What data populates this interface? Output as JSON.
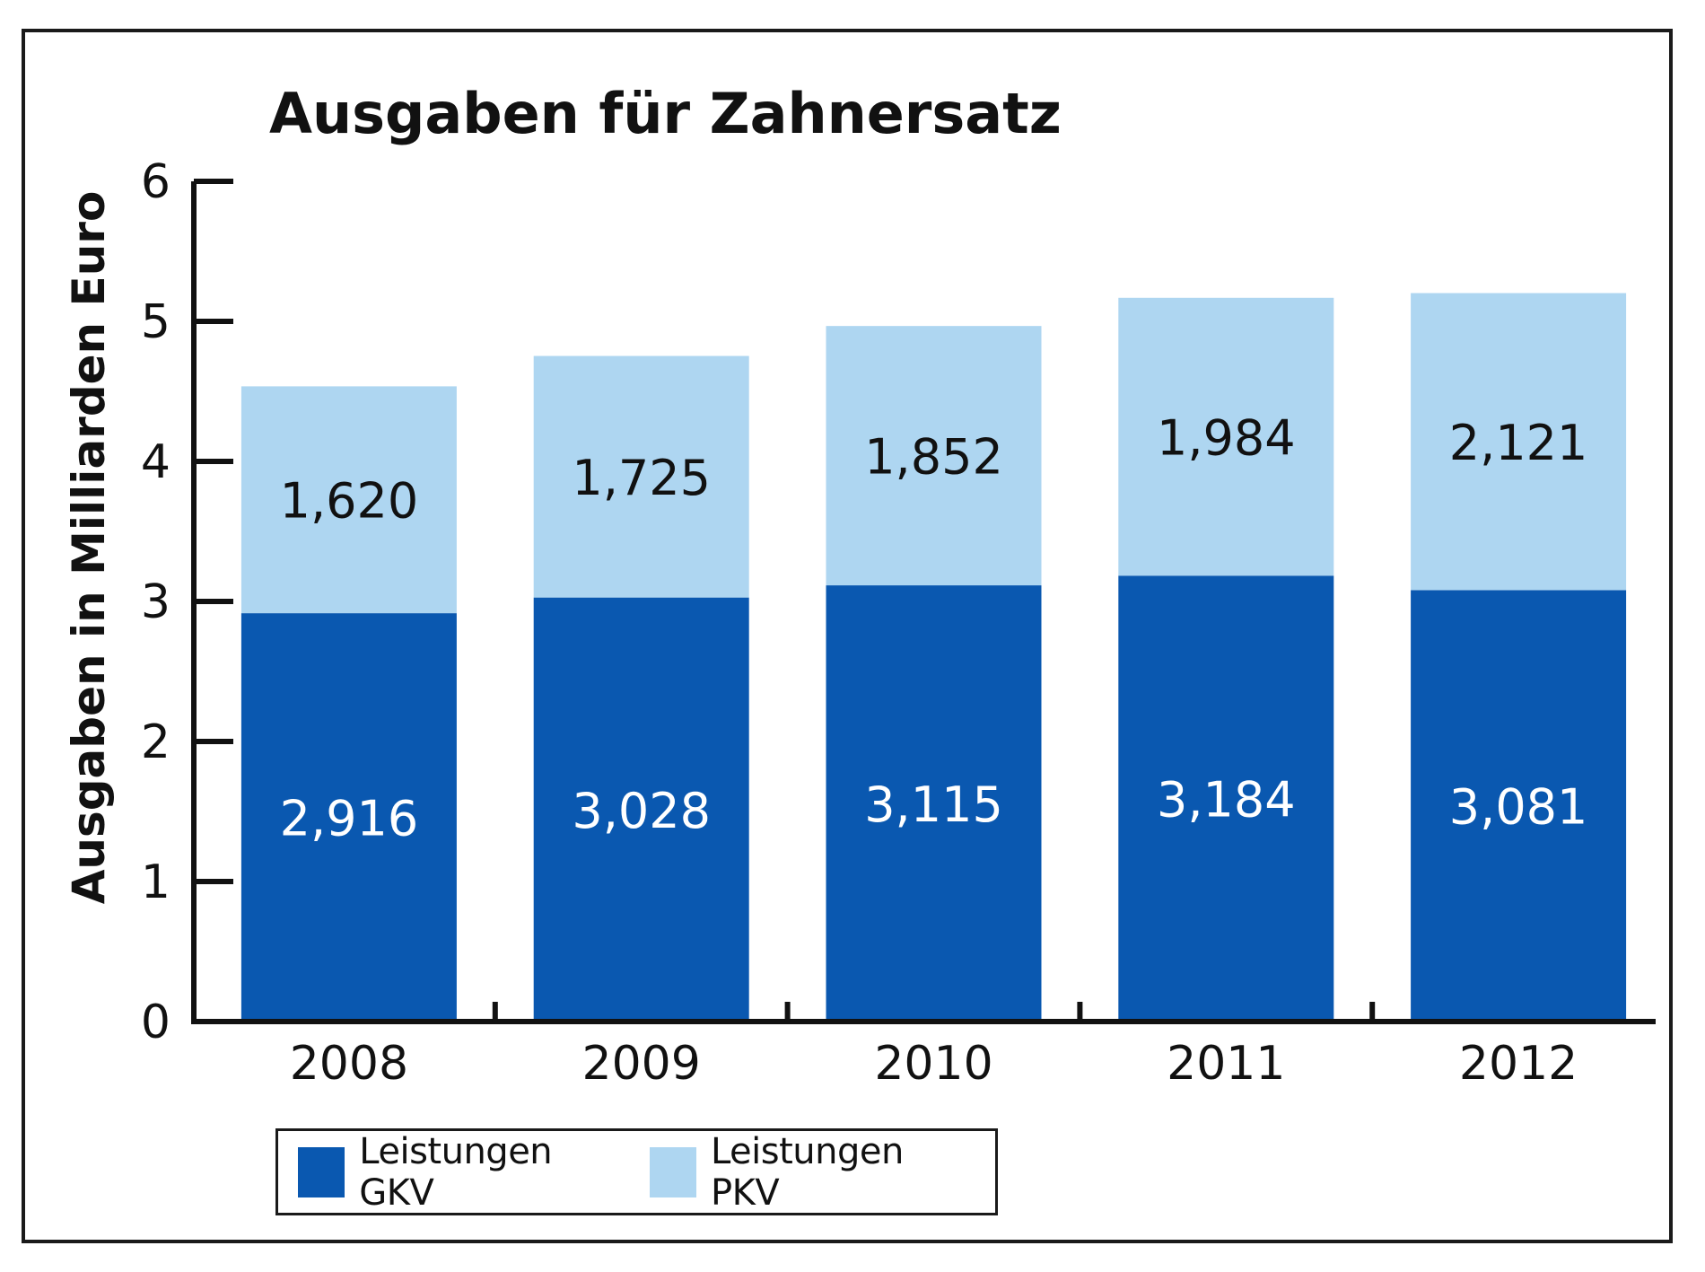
{
  "colors": {
    "gkv": "#0a58b0",
    "pkv": "#aed6f1",
    "axis": "#111111",
    "gkv_label": "#ffffff",
    "pkv_label": "#111111"
  },
  "chart_data": {
    "type": "bar",
    "stacked": true,
    "title": "Ausgaben für Zahnersatz",
    "xlabel": "",
    "ylabel": "Ausgaben in Milliarden Euro",
    "ylim": [
      0,
      6
    ],
    "yticks": [
      0,
      1,
      2,
      3,
      4,
      5,
      6
    ],
    "categories": [
      "2008",
      "2009",
      "2010",
      "2011",
      "2012"
    ],
    "series": [
      {
        "name": "Leistungen GKV",
        "values": [
          2.916,
          3.028,
          3.115,
          3.184,
          3.081
        ],
        "labels": [
          "2,916",
          "3,028",
          "3,115",
          "3,184",
          "3,081"
        ]
      },
      {
        "name": "Leistungen PKV",
        "values": [
          1.62,
          1.725,
          1.852,
          1.984,
          2.121
        ],
        "labels": [
          "1,620",
          "1,725",
          "1,852",
          "1,984",
          "2,121"
        ]
      }
    ],
    "legend": "bottom-left",
    "grid": false
  }
}
